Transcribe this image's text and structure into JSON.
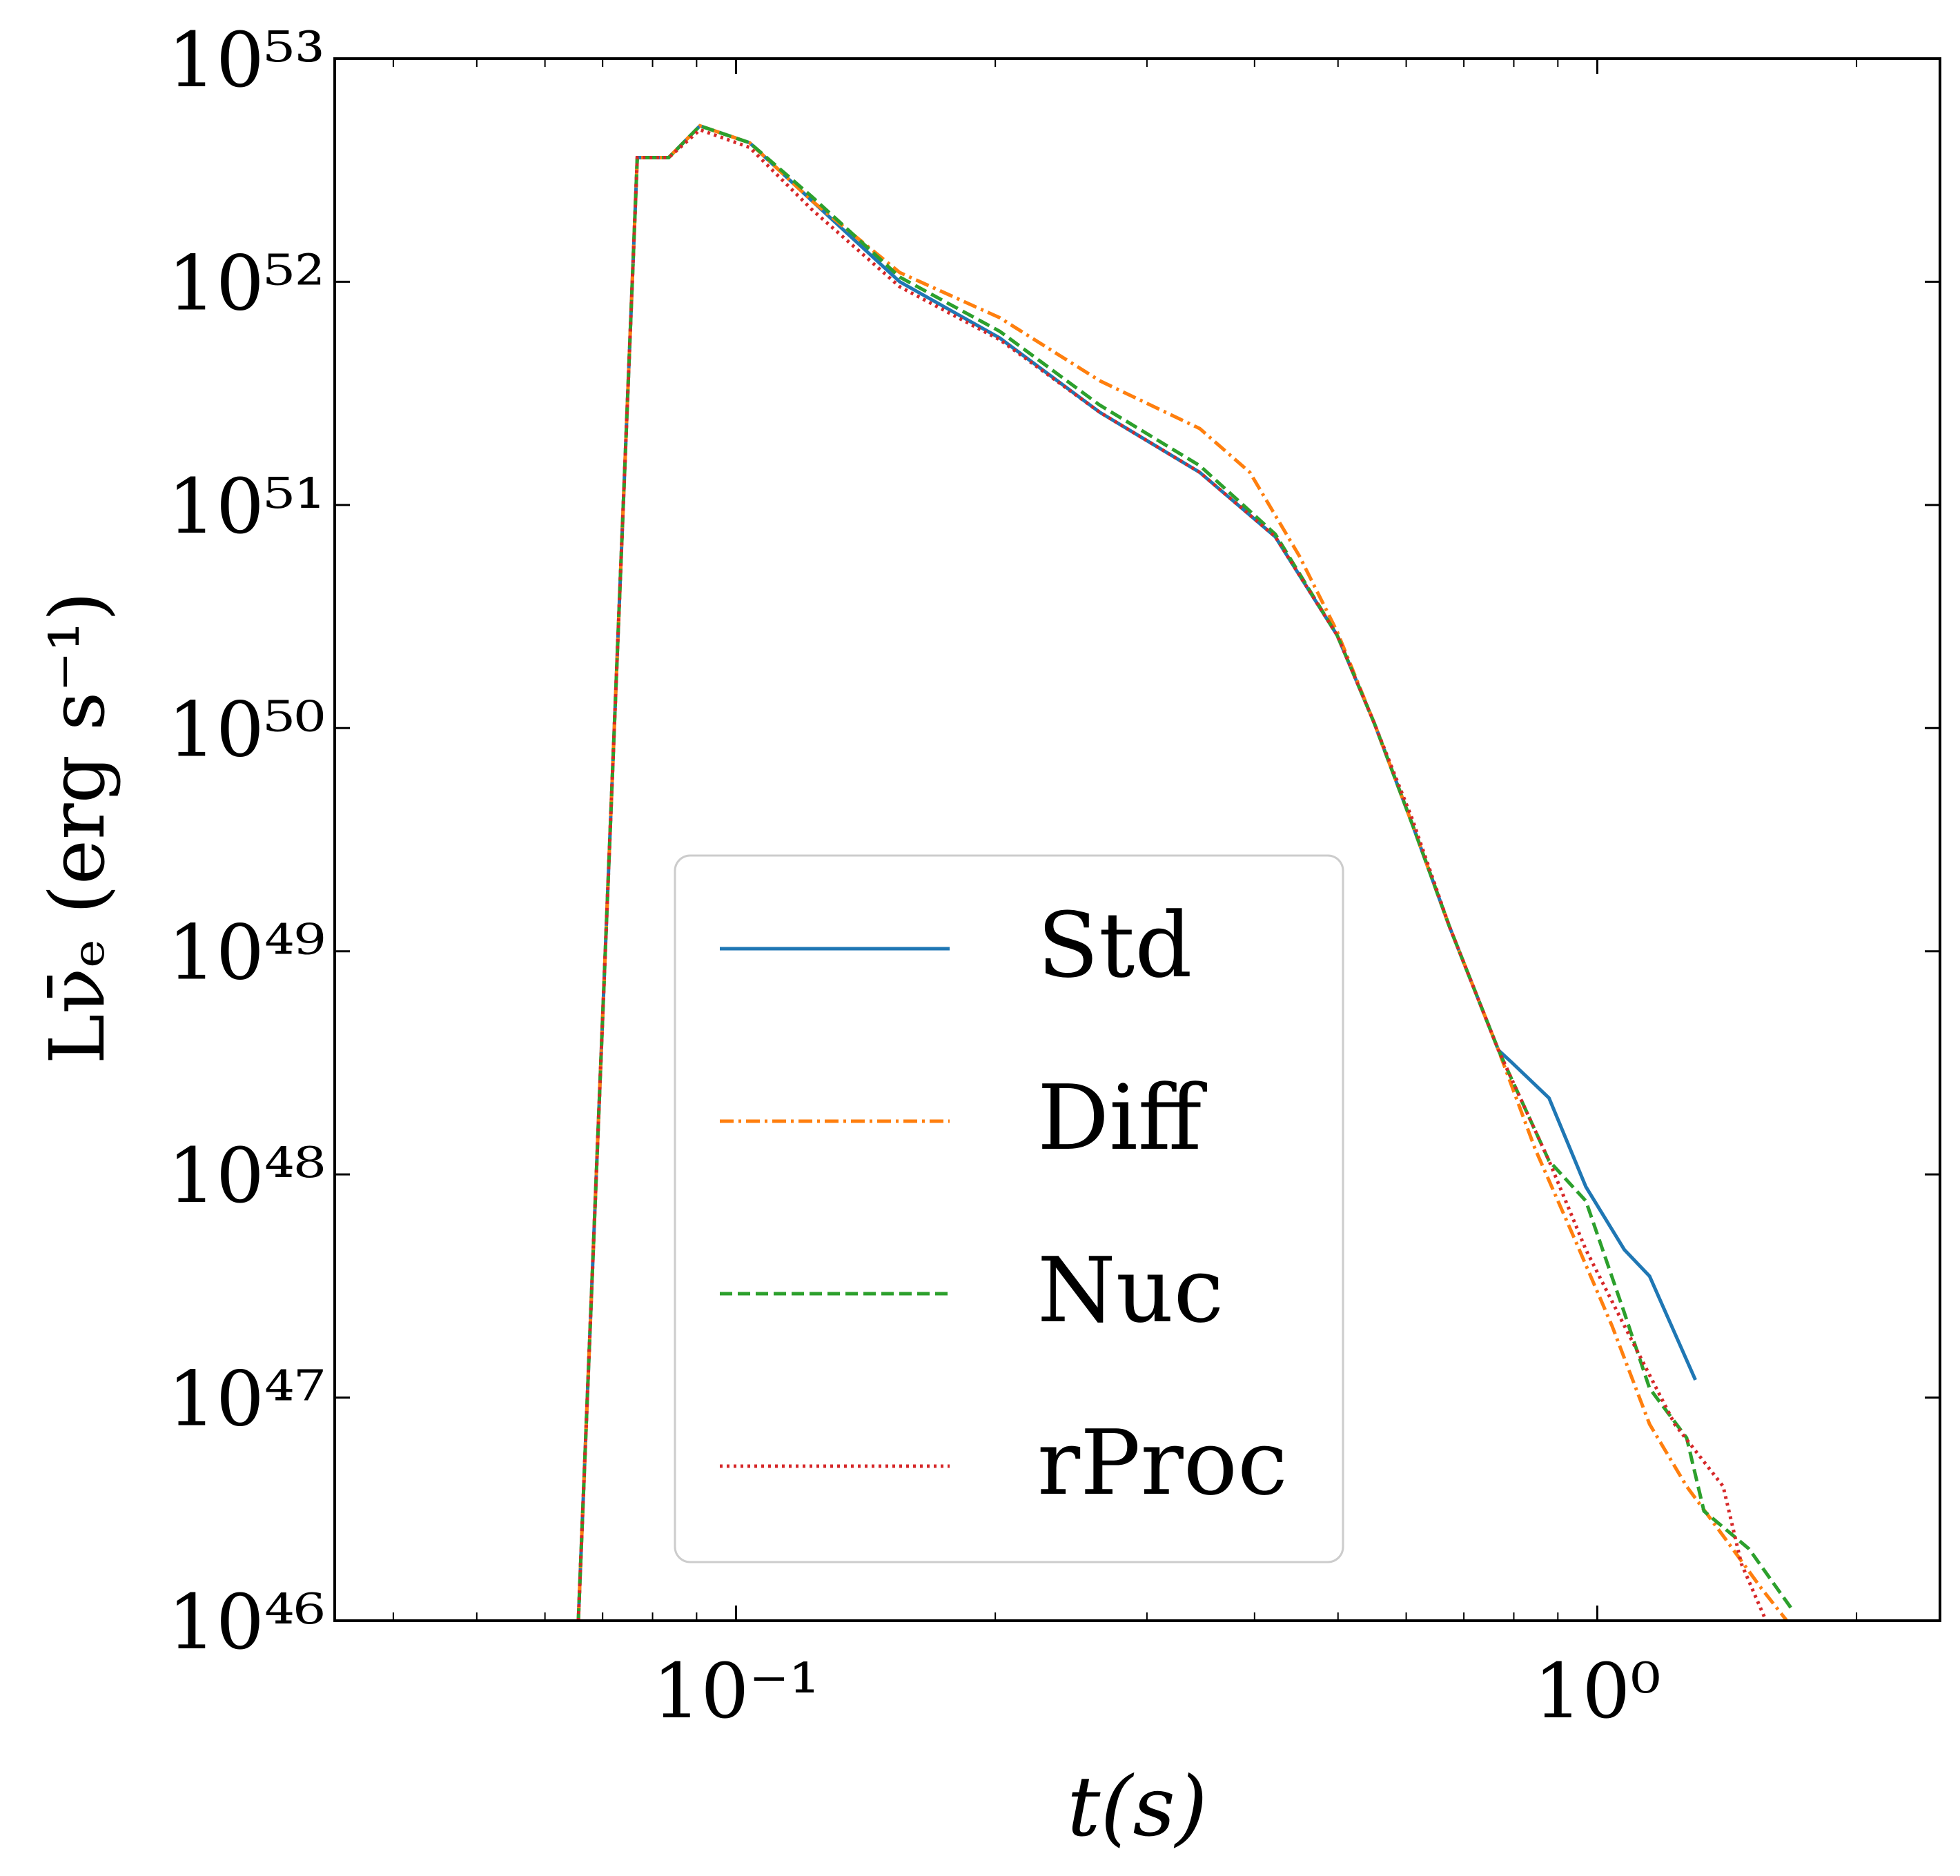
{
  "chart_data": {
    "type": "line",
    "x_label": "t(s)",
    "y_label": "Lν̄ₑ (erg s⁻¹)",
    "xscale": "log",
    "yscale": "log",
    "xlim": [
      0.0342,
      2.5
    ],
    "ylim": [
      1e+46,
      1e+53
    ],
    "xticks": [
      {
        "value": 0.1,
        "label": "10⁻¹"
      },
      {
        "value": 1,
        "label": "10⁰"
      }
    ],
    "xminorticks": [
      0.04,
      0.05,
      0.06,
      0.07,
      0.08,
      0.09,
      0.2,
      0.3,
      0.4,
      0.5,
      0.6,
      0.7,
      0.8,
      0.9,
      2
    ],
    "yticks": [
      {
        "value": 1e+46,
        "label": "10⁴⁶"
      },
      {
        "value": 1e+47,
        "label": "10⁴⁷"
      },
      {
        "value": 1e+48,
        "label": "10⁴⁸"
      },
      {
        "value": 1e+49,
        "label": "10⁴⁹"
      },
      {
        "value": 1e+50,
        "label": "10⁵⁰"
      },
      {
        "value": 1e+51,
        "label": "10⁵¹"
      },
      {
        "value": 1e+52,
        "label": "10⁵²"
      },
      {
        "value": 1e+53,
        "label": "10⁵³"
      }
    ],
    "legend": "lower center",
    "series": [
      {
        "name": "Std",
        "color": "#1f77b4",
        "dash": "solid",
        "x": [
          0.0656,
          0.0768,
          0.0835,
          0.0908,
          0.1037,
          0.1226,
          0.1549,
          0.2024,
          0.2645,
          0.3455,
          0.4228,
          0.499,
          0.551,
          0.61,
          0.673,
          0.768,
          0.794,
          0.879,
          0.97,
          1.075,
          1.15,
          1.3
        ],
        "values": [
          1e+46,
          3.6e+52,
          3.6e+52,
          5e+52,
          4.2e+52,
          2.3e+52,
          1e+52,
          5.6e+51,
          2.6e+51,
          1.4e+51,
          7.2e+50,
          2.6e+50,
          1.05e+50,
          3.7e+49,
          1.3e+49,
          3.6e+48,
          3.2e+48,
          2.2e+48,
          8.8e+47,
          4.6e+47,
          3.5e+47,
          1.2e+47
        ]
      },
      {
        "name": "Diff",
        "color": "#ff7f0e",
        "dash": "dashdot",
        "x": [
          0.0656,
          0.0768,
          0.0835,
          0.0908,
          0.1037,
          0.1226,
          0.1549,
          0.2024,
          0.2645,
          0.3455,
          0.395,
          0.451,
          0.499,
          0.551,
          0.61,
          0.673,
          0.768,
          0.847,
          0.94,
          1.04,
          1.15,
          1.27,
          1.4,
          1.55,
          1.66
        ],
        "values": [
          1e+46,
          3.6e+52,
          3.6e+52,
          5e+52,
          4.2e+52,
          2.3e+52,
          1.1e+52,
          6.9e+51,
          3.6e+51,
          2.2e+51,
          1.4e+51,
          5.9e+50,
          2.7e+50,
          1.05e+50,
          3.7e+49,
          1.3e+49,
          3.6e+48,
          1.3e+48,
          5.2e+47,
          2.1e+47,
          7.6e+46,
          4e+46,
          2.4e+46,
          1.4e+46,
          1e+46
        ]
      },
      {
        "name": "Nuc",
        "color": "#2ca02c",
        "dash": "dashed",
        "x": [
          0.0656,
          0.0768,
          0.0835,
          0.0908,
          0.1037,
          0.1226,
          0.1549,
          0.2024,
          0.2645,
          0.3455,
          0.4228,
          0.499,
          0.551,
          0.61,
          0.673,
          0.768,
          0.879,
          0.97,
          1.075,
          1.15,
          1.27,
          1.33,
          1.5,
          1.69
        ],
        "values": [
          1e+46,
          3.6e+52,
          3.6e+52,
          5e+52,
          4.2e+52,
          2.4e+52,
          1.05e+52,
          6e+51,
          2.8e+51,
          1.5e+51,
          7.4e+50,
          2.6e+50,
          1.05e+50,
          3.7e+49,
          1.3e+49,
          3.6e+48,
          1.15e+48,
          7.6e+47,
          2.4e+47,
          1.1e+47,
          6.6e+46,
          3.1e+46,
          2.1e+46,
          1.1e+46
        ]
      },
      {
        "name": "rProc",
        "color": "#d62728",
        "dash": "dotted",
        "x": [
          0.0656,
          0.0768,
          0.0835,
          0.0908,
          0.1037,
          0.1226,
          0.1549,
          0.2024,
          0.2645,
          0.3455,
          0.4228,
          0.499,
          0.551,
          0.61,
          0.673,
          0.768,
          0.879,
          0.97,
          1.075,
          1.23,
          1.4,
          1.47,
          1.57
        ],
        "values": [
          1e+46,
          3.6e+52,
          3.6e+52,
          4.8e+52,
          4e+52,
          2.1e+52,
          9.5e+51,
          5.5e+51,
          2.6e+51,
          1.4e+51,
          7.2e+50,
          2.6e+50,
          1.05e+50,
          3.9e+49,
          1.3e+49,
          3.6e+48,
          1.15e+48,
          4.6e+47,
          2.1e+47,
          7.6e+46,
          4e+46,
          1.8e+46,
          1e+46
        ]
      }
    ]
  }
}
